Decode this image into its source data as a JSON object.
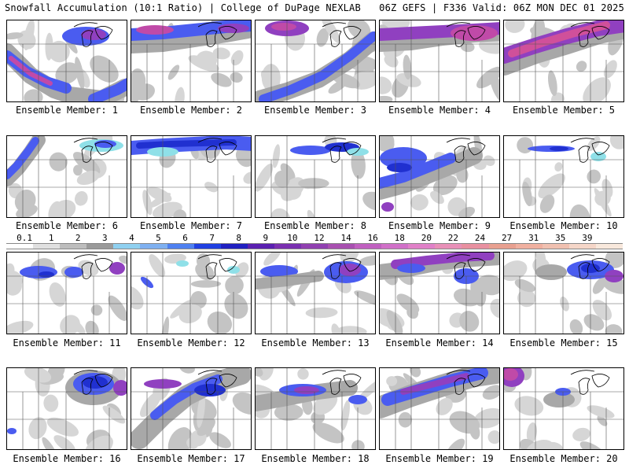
{
  "header": {
    "left_title": "Snowfall Accumulation (10:1 Ratio) | College of DuPage NEXLAB",
    "right_title": "06Z GEFS | F336 Valid: 06Z MON DEC 01 2025"
  },
  "members": [
    {
      "label": "Ensemble Member: 1",
      "pattern": "sw-diag"
    },
    {
      "label": "Ensemble Member: 2",
      "pattern": "north-heavy"
    },
    {
      "label": "Ensemble Member: 3",
      "pattern": "ne-diag"
    },
    {
      "label": "Ensemble Member: 4",
      "pattern": "north-purple"
    },
    {
      "label": "Ensemble Member: 5",
      "pattern": "north-pink"
    },
    {
      "label": "Ensemble Member: 6",
      "pattern": "west-edge"
    },
    {
      "label": "Ensemble Member: 7",
      "pattern": "north-band"
    },
    {
      "label": "Ensemble Member: 8",
      "pattern": "north-light"
    },
    {
      "label": "Ensemble Member: 9",
      "pattern": "west-blob"
    },
    {
      "label": "Ensemble Member: 10",
      "pattern": "north-thin"
    },
    {
      "label": "Ensemble Member: 11",
      "pattern": "north-spots"
    },
    {
      "label": "Ensemble Member: 12",
      "pattern": "sparse"
    },
    {
      "label": "Ensemble Member: 13",
      "pattern": "lakes"
    },
    {
      "label": "Ensemble Member: 14",
      "pattern": "north-heavy2"
    },
    {
      "label": "Ensemble Member: 15",
      "pattern": "north-east"
    },
    {
      "label": "Ensemble Member: 16",
      "pattern": "lakes-heavy"
    },
    {
      "label": "Ensemble Member: 17",
      "pattern": "central-heavy"
    },
    {
      "label": "Ensemble Member: 18",
      "pattern": "band-mid"
    },
    {
      "label": "Ensemble Member: 19",
      "pattern": "north-wide"
    },
    {
      "label": "Ensemble Member: 20",
      "pattern": "nw-corner"
    }
  ],
  "colorbar": {
    "labels": [
      "0.1",
      "1",
      "2",
      "3",
      "4",
      "5",
      "6",
      "7",
      "8",
      "9",
      "10",
      "12",
      "14",
      "16",
      "18",
      "20",
      "22",
      "24",
      "27",
      "31",
      "35",
      "39"
    ],
    "colors": [
      "#ffffff",
      "#e0e0e0",
      "#bdbdbd",
      "#9a9a9a",
      "#8fd0f0",
      "#7fb0f0",
      "#4f80f0",
      "#2040e0",
      "#2020c0",
      "#5a20b0",
      "#7a30b0",
      "#9040b0",
      "#a850b0",
      "#c060c0",
      "#d070c8",
      "#e080c8",
      "#e890b8",
      "#e890a0",
      "#e8a090",
      "#f0b0a0",
      "#f0c0b0",
      "#f5d6c8",
      "#f8e8dc"
    ]
  },
  "colors": {
    "light_gray": "#d6d6d6",
    "mid_gray": "#a8a8a8",
    "cyan": "#8fe0e8",
    "blue": "#4a5cf0",
    "dark_blue": "#2030d0",
    "purple": "#9040c0",
    "magenta": "#c04aa8",
    "pink": "#d0509a"
  }
}
